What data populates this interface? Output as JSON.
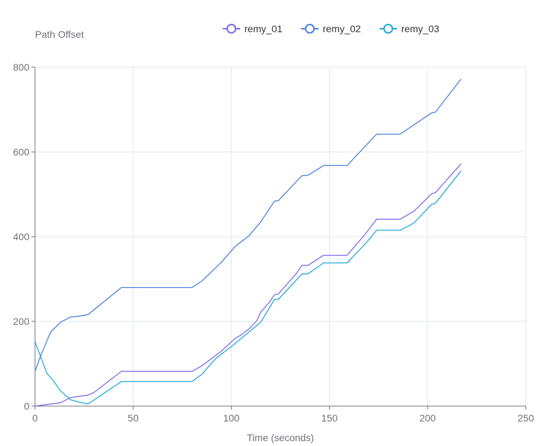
{
  "chart_data": {
    "type": "line",
    "title": "",
    "ylabel": "Path Offset",
    "xlabel": "Time (seconds)",
    "xlim": [
      0,
      250
    ],
    "ylim": [
      0,
      800
    ],
    "x_ticks": [
      0,
      50,
      100,
      150,
      200,
      250
    ],
    "y_ticks": [
      0,
      200,
      400,
      600,
      800
    ],
    "grid": true,
    "legend_position": "top-center",
    "series": [
      {
        "name": "remy_01",
        "color": "#7b68ee",
        "points": [
          [
            0,
            0
          ],
          [
            13,
            8
          ],
          [
            18,
            20
          ],
          [
            27,
            26
          ],
          [
            30,
            32
          ],
          [
            44,
            82
          ],
          [
            80,
            82
          ],
          [
            85,
            95
          ],
          [
            95,
            130
          ],
          [
            102,
            160
          ],
          [
            105,
            168
          ],
          [
            109,
            182
          ],
          [
            113,
            202
          ],
          [
            115,
            222
          ],
          [
            119,
            243
          ],
          [
            122,
            263
          ],
          [
            124,
            265
          ],
          [
            133,
            312
          ],
          [
            136,
            332
          ],
          [
            139,
            332
          ],
          [
            147,
            356
          ],
          [
            159,
            356
          ],
          [
            168,
            405
          ],
          [
            174,
            441
          ],
          [
            186,
            441
          ],
          [
            193,
            460
          ],
          [
            202,
            501
          ],
          [
            204,
            504
          ],
          [
            217,
            572
          ]
        ]
      },
      {
        "name": "remy_02",
        "color": "#4a7fe0",
        "points": [
          [
            0,
            82
          ],
          [
            3,
            120
          ],
          [
            8,
            175
          ],
          [
            13,
            198
          ],
          [
            18,
            210
          ],
          [
            22,
            212
          ],
          [
            27,
            216
          ],
          [
            44,
            280
          ],
          [
            80,
            280
          ],
          [
            85,
            295
          ],
          [
            95,
            340
          ],
          [
            102,
            377
          ],
          [
            109,
            402
          ],
          [
            115,
            435
          ],
          [
            122,
            484
          ],
          [
            124,
            485
          ],
          [
            136,
            544
          ],
          [
            139,
            545
          ],
          [
            147,
            568
          ],
          [
            159,
            568
          ],
          [
            174,
            642
          ],
          [
            186,
            642
          ],
          [
            202,
            692
          ],
          [
            204,
            694
          ],
          [
            217,
            772
          ]
        ]
      },
      {
        "name": "remy_03",
        "color": "#1fa7d8",
        "points": [
          [
            0,
            152
          ],
          [
            6,
            78
          ],
          [
            9,
            62
          ],
          [
            13,
            36
          ],
          [
            18,
            15
          ],
          [
            22,
            10
          ],
          [
            27,
            5
          ],
          [
            44,
            58
          ],
          [
            80,
            58
          ],
          [
            85,
            75
          ],
          [
            92,
            112
          ],
          [
            102,
            148
          ],
          [
            109,
            175
          ],
          [
            115,
            198
          ],
          [
            122,
            252
          ],
          [
            124,
            252
          ],
          [
            136,
            312
          ],
          [
            139,
            312
          ],
          [
            147,
            338
          ],
          [
            159,
            338
          ],
          [
            168,
            382
          ],
          [
            174,
            415
          ],
          [
            186,
            415
          ],
          [
            193,
            432
          ],
          [
            202,
            476
          ],
          [
            204,
            479
          ],
          [
            217,
            555
          ]
        ]
      }
    ]
  }
}
